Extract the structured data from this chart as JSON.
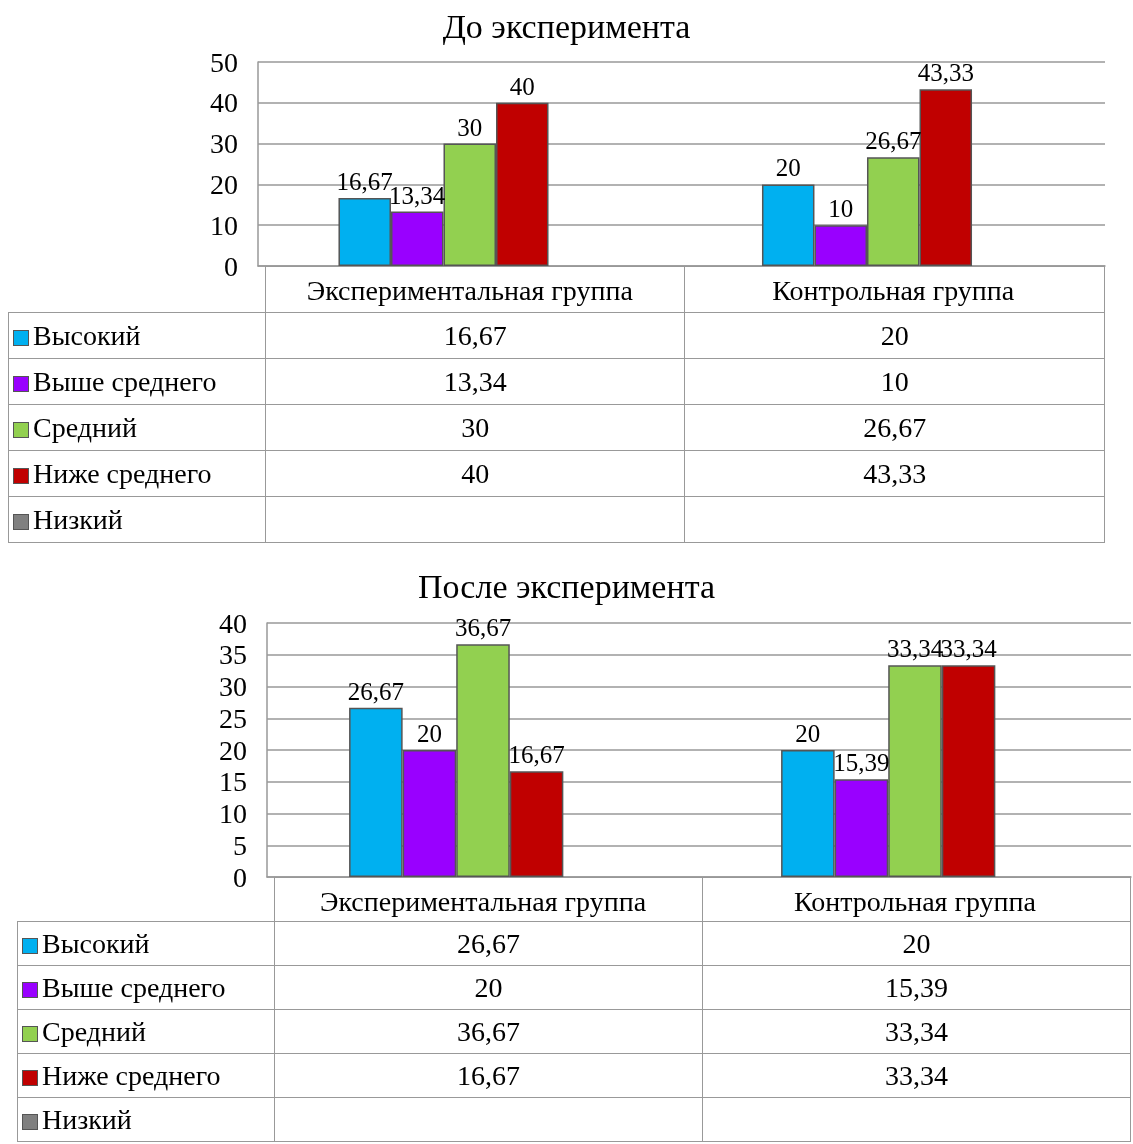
{
  "chart_data": [
    {
      "type": "bar",
      "title": "До эксперимента",
      "categories": [
        "Экспериментальная группа",
        "Контрольная группа"
      ],
      "series": [
        {
          "name": "Высокий",
          "color": "#00b0f0",
          "values": [
            16.67,
            20
          ],
          "value_labels": [
            "16,67",
            "20"
          ]
        },
        {
          "name": "Выше среднего",
          "color": "#9900ff",
          "values": [
            13.34,
            10
          ],
          "value_labels": [
            "13,34",
            "10"
          ]
        },
        {
          "name": "Средний",
          "color": "#92d050",
          "values": [
            30,
            26.67
          ],
          "value_labels": [
            "30",
            "26,67"
          ]
        },
        {
          "name": "Ниже среднего",
          "color": "#c00000",
          "values": [
            40,
            43.33
          ],
          "value_labels": [
            "40",
            "43,33"
          ]
        },
        {
          "name": "Низкий",
          "color": "#808080",
          "values": [
            null,
            null
          ]
        }
      ],
      "ylim": [
        0,
        50
      ],
      "yticks": [
        0,
        10,
        20,
        30,
        40,
        50
      ],
      "grid": "y",
      "legend": "bottom"
    },
    {
      "type": "bar",
      "title": "После эксперимента",
      "categories": [
        "Экспериментальная группа",
        "Контрольная группа"
      ],
      "series": [
        {
          "name": "Высокий",
          "color": "#00b0f0",
          "values": [
            26.67,
            20
          ],
          "value_labels": [
            "26,67",
            "20"
          ]
        },
        {
          "name": "Выше среднего",
          "color": "#9900ff",
          "values": [
            20,
            15.39
          ],
          "value_labels": [
            "20",
            "15,39"
          ]
        },
        {
          "name": "Средний",
          "color": "#92d050",
          "values": [
            36.67,
            33.34
          ],
          "value_labels": [
            "36,67",
            "33,34"
          ]
        },
        {
          "name": "Ниже среднего",
          "color": "#c00000",
          "values": [
            16.67,
            33.34
          ],
          "value_labels": [
            "16,67",
            "33,34"
          ]
        },
        {
          "name": "Низкий",
          "color": "#808080",
          "values": [
            null,
            null
          ]
        }
      ],
      "ylim": [
        0,
        40
      ],
      "yticks": [
        0,
        5,
        10,
        15,
        20,
        25,
        30,
        35,
        40
      ],
      "grid": "y",
      "legend": "bottom"
    }
  ]
}
